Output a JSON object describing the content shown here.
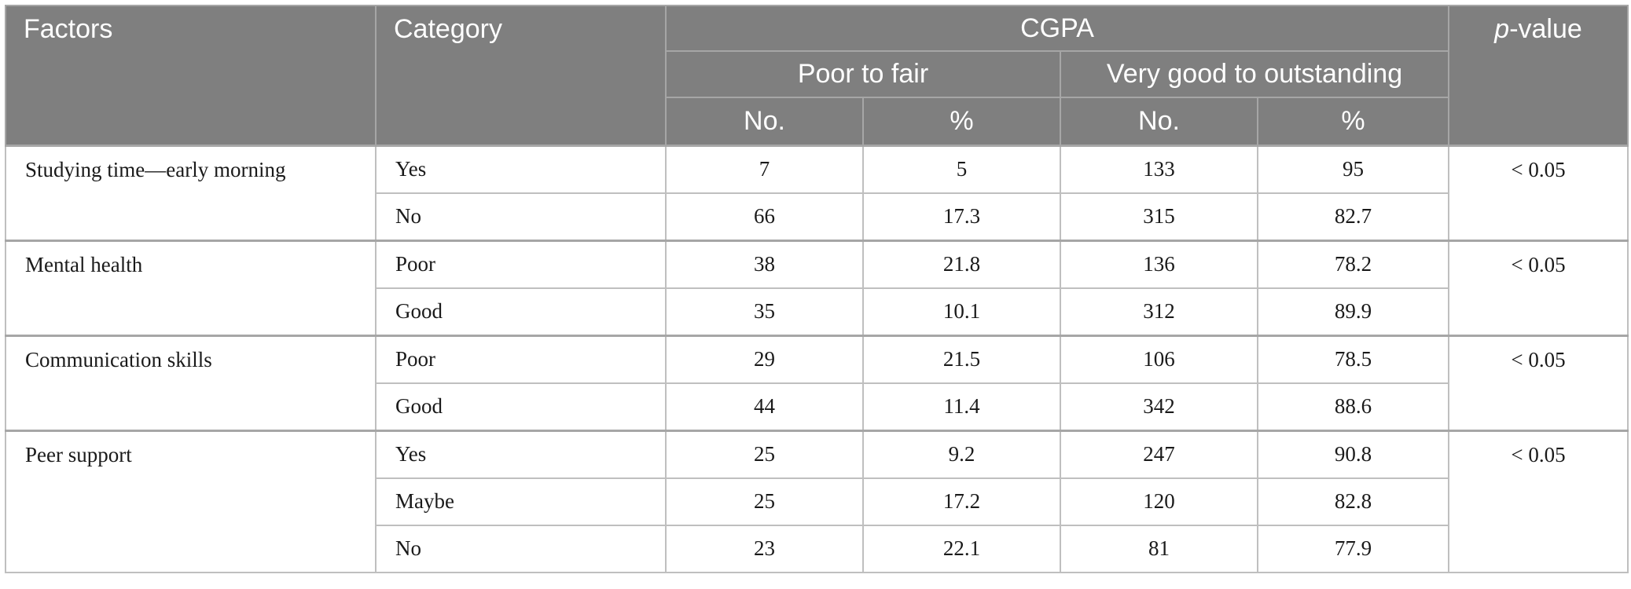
{
  "header": {
    "factors": "Factors",
    "category": "Category",
    "cgpa": "CGPA",
    "p_value_italic": "p",
    "p_value_rest": "-value",
    "group_poor": "Poor to fair",
    "group_good": "Very good to outstanding",
    "no_1": "No.",
    "pct_1": "%",
    "no_2": "No.",
    "pct_2": "%"
  },
  "factors": [
    {
      "name": "Studying time—early morning",
      "p_value": "< 0.05",
      "rows": [
        {
          "category": "Yes",
          "pf_no": "7",
          "pf_pct": "5",
          "vg_no": "133",
          "vg_pct": "95"
        },
        {
          "category": "No",
          "pf_no": "66",
          "pf_pct": "17.3",
          "vg_no": "315",
          "vg_pct": "82.7"
        }
      ]
    },
    {
      "name": "Mental health",
      "p_value": "< 0.05",
      "rows": [
        {
          "category": "Poor",
          "pf_no": "38",
          "pf_pct": "21.8",
          "vg_no": "136",
          "vg_pct": "78.2"
        },
        {
          "category": "Good",
          "pf_no": "35",
          "pf_pct": "10.1",
          "vg_no": "312",
          "vg_pct": "89.9"
        }
      ]
    },
    {
      "name": "Communication skills",
      "p_value": "< 0.05",
      "rows": [
        {
          "category": "Poor",
          "pf_no": "29",
          "pf_pct": "21.5",
          "vg_no": "106",
          "vg_pct": "78.5"
        },
        {
          "category": "Good",
          "pf_no": "44",
          "pf_pct": "11.4",
          "vg_no": "342",
          "vg_pct": "88.6"
        }
      ]
    },
    {
      "name": "Peer support",
      "p_value": "< 0.05",
      "rows": [
        {
          "category": "Yes",
          "pf_no": "25",
          "pf_pct": "9.2",
          "vg_no": "247",
          "vg_pct": "90.8"
        },
        {
          "category": "Maybe",
          "pf_no": "25",
          "pf_pct": "17.2",
          "vg_no": "120",
          "vg_pct": "82.8"
        },
        {
          "category": "No",
          "pf_no": "23",
          "pf_pct": "22.1",
          "vg_no": "81",
          "vg_pct": "77.9"
        }
      ]
    }
  ]
}
